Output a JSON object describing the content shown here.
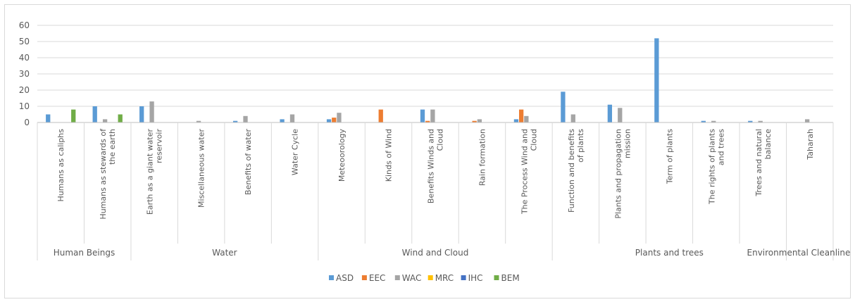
{
  "chart_data": {
    "type": "bar",
    "title": "",
    "xlabel": "",
    "ylabel": "",
    "ylim": [
      0,
      60
    ],
    "yticks": [
      0,
      10,
      20,
      30,
      40,
      50,
      60
    ],
    "grid": true,
    "legend_position": "bottom",
    "groups": [
      {
        "name": "Human Beings",
        "count": 2
      },
      {
        "name": "Water",
        "count": 4
      },
      {
        "name": "Wind and Cloud",
        "count": 5
      },
      {
        "name": "Plants and trees",
        "count": 5
      },
      {
        "name": "Environmental Cleanliness",
        "count": 1
      }
    ],
    "categories": [
      [
        "Humans as caliphs"
      ],
      [
        "Humans as stewards of",
        "the earth"
      ],
      [
        "Earth as a giant water",
        "reservoir"
      ],
      [
        "Miscellaneous water"
      ],
      [
        "Benefits of water"
      ],
      [
        "Water Cycle"
      ],
      [
        "Meteoorology"
      ],
      [
        "Kinds of Wind"
      ],
      [
        "Benefits Winds and",
        "Cloud"
      ],
      [
        "Rain formation"
      ],
      [
        "The Process Wind and",
        "Cloud"
      ],
      [
        "Function and benefits",
        "of plants"
      ],
      [
        "Plants and propagation",
        "mission"
      ],
      [
        "Term of plants"
      ],
      [
        "The rights of plants",
        "and trees"
      ],
      [
        "Trees and natural",
        "balance"
      ],
      [
        "Taharah"
      ]
    ],
    "series": [
      {
        "name": "ASD",
        "color": "#5b9bd5",
        "values": [
          5,
          10,
          10,
          0,
          1,
          2,
          2,
          0,
          8,
          0,
          2,
          19,
          11,
          52,
          1,
          1,
          0
        ]
      },
      {
        "name": "EEC",
        "color": "#ed7d31",
        "values": [
          0,
          0,
          0,
          0,
          0,
          0,
          3,
          8,
          1,
          1,
          8,
          0,
          0,
          0,
          0,
          0,
          0
        ]
      },
      {
        "name": "WAC",
        "color": "#a5a5a5",
        "values": [
          0,
          2,
          13,
          1,
          4,
          5,
          6,
          0,
          8,
          2,
          4,
          5,
          9,
          0,
          1,
          1,
          2
        ]
      },
      {
        "name": "MRC",
        "color": "#ffc000",
        "values": [
          0,
          0,
          0,
          0,
          0,
          0,
          0,
          0,
          0,
          0,
          0,
          0,
          0,
          0,
          0,
          0,
          0
        ]
      },
      {
        "name": "IHC",
        "color": "#4472c4",
        "values": [
          0,
          0,
          0,
          0,
          0,
          0,
          0,
          0,
          0,
          0,
          0,
          0,
          0,
          0,
          0,
          0,
          0
        ]
      },
      {
        "name": "BEM",
        "color": "#70ad47",
        "values": [
          8,
          5,
          0,
          0,
          0,
          0,
          0,
          0,
          0,
          0,
          0,
          0,
          0,
          0,
          0,
          0,
          0
        ]
      }
    ]
  }
}
